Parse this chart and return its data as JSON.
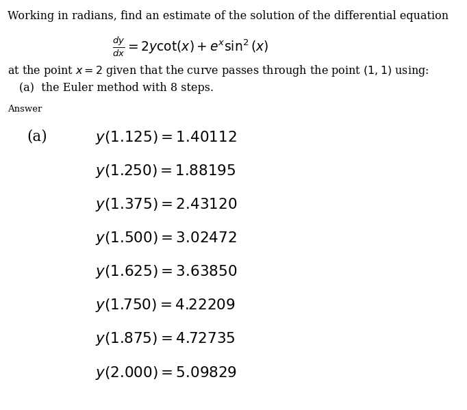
{
  "bg_color": "#ffffff",
  "title_line": "Working in radians, find an estimate of the solution of the differential equation",
  "equation_lhs": "\\frac{dy}{dx}",
  "equation_rhs": "= 2y\\cot(x) + e^{x}\\sin^{2}(x)",
  "subtitle_line": "at the point $x = 2$ given that the curve passes through the point $(1, 1)$ using:",
  "method_line": "(a)  the Euler method with 8 steps.",
  "answer_label": "Answer",
  "part_label": "(a)",
  "results": [
    [
      "y(1.125)",
      "1.40112"
    ],
    [
      "y(1.250)",
      "1.88195"
    ],
    [
      "y(1.375)",
      "2.43120"
    ],
    [
      "y(1.500)",
      "3.02472"
    ],
    [
      "y(1.625)",
      "3.63850"
    ],
    [
      "y(1.750)",
      "4.22209"
    ],
    [
      "y(1.875)",
      "4.72735"
    ],
    [
      "y(2.000)",
      "5.09829"
    ]
  ]
}
